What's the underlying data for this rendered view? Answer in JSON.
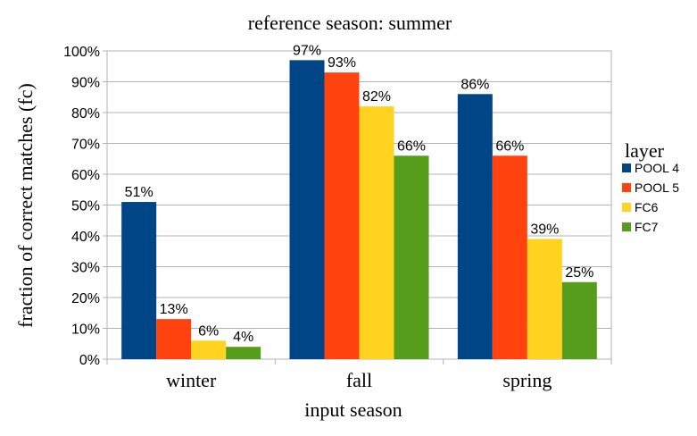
{
  "chart_data": {
    "type": "bar",
    "title": "reference season: summer",
    "xlabel": "input season",
    "ylabel": "fraction of correct matches (fc)",
    "categories": [
      "winter",
      "fall",
      "spring"
    ],
    "ylim": [
      0,
      100
    ],
    "yticks": [
      "0%",
      "10%",
      "20%",
      "30%",
      "40%",
      "50%",
      "60%",
      "70%",
      "80%",
      "90%",
      "100%"
    ],
    "grid": true,
    "legend_title": "layer",
    "legend_position": "right",
    "series": [
      {
        "name": "POOL 4",
        "color": "#004586",
        "values": [
          51,
          97,
          86
        ],
        "labels": [
          "51%",
          "97%",
          "86%"
        ]
      },
      {
        "name": "POOL 5",
        "color": "#ff420e",
        "values": [
          13,
          93,
          66
        ],
        "labels": [
          "13%",
          "93%",
          "66%"
        ]
      },
      {
        "name": "FC6",
        "color": "#ffd320",
        "values": [
          6,
          82,
          39
        ],
        "labels": [
          "6%",
          "82%",
          "39%"
        ]
      },
      {
        "name": "FC7",
        "color": "#579d1c",
        "values": [
          4,
          66,
          25
        ],
        "labels": [
          "4%",
          "66%",
          "25%"
        ]
      }
    ]
  }
}
